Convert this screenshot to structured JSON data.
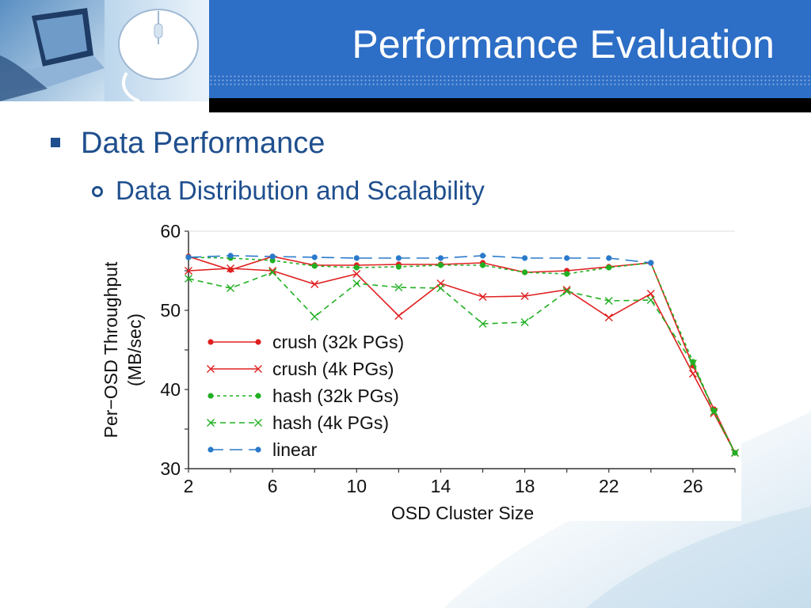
{
  "slide": {
    "title": "Performance Evaluation",
    "bullet_level1": "Data Performance",
    "bullet_level2": "Data Distribution and Scalability"
  },
  "colors": {
    "header_blue": "#2d6ec6",
    "text_blue": "#1f4f8e",
    "crush": "#e02020",
    "hash": "#22b022",
    "linear": "#2a7acc"
  },
  "icons": [
    "laptop-photo",
    "mouse-photo"
  ],
  "chart_data": {
    "type": "line",
    "title": "",
    "xlabel": "OSD Cluster Size",
    "ylabel_lines": [
      "Per−OSD Throughput",
      "(MB/sec)"
    ],
    "xlim": [
      2,
      28
    ],
    "ylim": [
      30,
      60
    ],
    "xticks": [
      2,
      6,
      10,
      14,
      18,
      22,
      26
    ],
    "yticks": [
      30,
      40,
      50,
      60
    ],
    "grid": false,
    "legend_position": "center-left",
    "series": [
      {
        "name": "crush (32k PGs)",
        "color": "#e02020",
        "marker": "dot",
        "dash": "solid",
        "x": [
          2,
          4,
          6,
          8,
          10,
          12,
          14,
          16,
          18,
          20,
          22,
          24,
          26,
          27,
          28
        ],
        "y": [
          56.8,
          55.1,
          56.8,
          55.7,
          55.7,
          55.8,
          55.8,
          56.0,
          54.8,
          55.0,
          55.5,
          56.0,
          43.0,
          37.5,
          32.0
        ]
      },
      {
        "name": "crush (4k PGs)",
        "color": "#e02020",
        "marker": "x",
        "dash": "solid",
        "x": [
          2,
          4,
          6,
          8,
          10,
          12,
          14,
          16,
          18,
          20,
          22,
          24,
          26,
          27,
          28
        ],
        "y": [
          55.0,
          55.3,
          55.0,
          53.3,
          54.6,
          49.3,
          53.4,
          51.7,
          51.8,
          52.6,
          49.1,
          52.1,
          42.0,
          37.0,
          32.0
        ]
      },
      {
        "name": "hash (32k PGs)",
        "color": "#22b022",
        "marker": "dot",
        "dash": "dotted",
        "x": [
          2,
          4,
          6,
          8,
          10,
          12,
          14,
          16,
          18,
          20,
          22,
          24,
          26,
          27,
          28
        ],
        "y": [
          56.7,
          56.6,
          56.3,
          55.6,
          55.4,
          55.5,
          55.7,
          55.7,
          54.8,
          54.6,
          55.4,
          56.0,
          43.5,
          37.3,
          32.0
        ]
      },
      {
        "name": "hash (4k PGs)",
        "color": "#22b022",
        "marker": "x",
        "dash": "dashed",
        "x": [
          2,
          4,
          6,
          8,
          10,
          12,
          14,
          16,
          18,
          20,
          22,
          24,
          26,
          27,
          28
        ],
        "y": [
          54.0,
          52.8,
          54.8,
          49.2,
          53.4,
          52.9,
          52.8,
          48.3,
          48.5,
          52.4,
          51.2,
          51.3,
          43.3,
          37.2,
          32.0
        ]
      },
      {
        "name": "linear",
        "color": "#2a7acc",
        "marker": "dot",
        "dash": "longdash",
        "x": [
          2,
          4,
          6,
          8,
          10,
          12,
          14,
          16,
          18,
          20,
          22,
          24
        ],
        "y": [
          56.7,
          56.9,
          56.8,
          56.7,
          56.6,
          56.6,
          56.6,
          56.9,
          56.6,
          56.6,
          56.6,
          56.0
        ]
      }
    ]
  }
}
